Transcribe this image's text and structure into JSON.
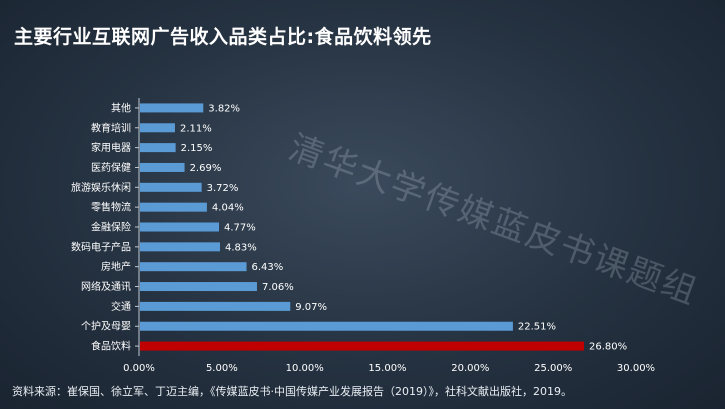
{
  "title": "主要行业互联网广告收入品类占比:食品饮料领先",
  "watermark": "清华大学传媒蓝皮书课题组",
  "source": "资料来源：崔保国、徐立军、丁迈主编，《传媒蓝皮书·中国传媒产业发展报告（2019）》，社科文献出版社，2019。",
  "colors": {
    "bar": "#5b9bd5",
    "highlight": "#c00000",
    "text": "#ffffff",
    "axis": "#bfc8d2"
  },
  "chart_data": {
    "type": "bar",
    "orientation": "horizontal",
    "categories": [
      "其他",
      "教育培训",
      "家用电器",
      "医药保健",
      "旅游娱乐休闲",
      "零售物流",
      "金融保险",
      "数码电子产品",
      "房地产",
      "网络及通讯",
      "交通",
      "个护及母婴",
      "食品饮料"
    ],
    "values": [
      3.82,
      2.11,
      2.15,
      2.69,
      3.72,
      4.04,
      4.77,
      4.83,
      6.43,
      7.06,
      9.07,
      22.51,
      26.8
    ],
    "value_labels": [
      "3.82%",
      "2.11%",
      "2.15%",
      "2.69%",
      "3.72%",
      "4.04%",
      "4.77%",
      "4.83%",
      "6.43%",
      "7.06%",
      "9.07%",
      "22.51%",
      "26.80%"
    ],
    "highlight": "食品饮料",
    "xlim": [
      0,
      30
    ],
    "xticks": [
      "0.00%",
      "5.00%",
      "10.00%",
      "15.00%",
      "20.00%",
      "25.00%",
      "30.00%"
    ],
    "grid": false
  }
}
